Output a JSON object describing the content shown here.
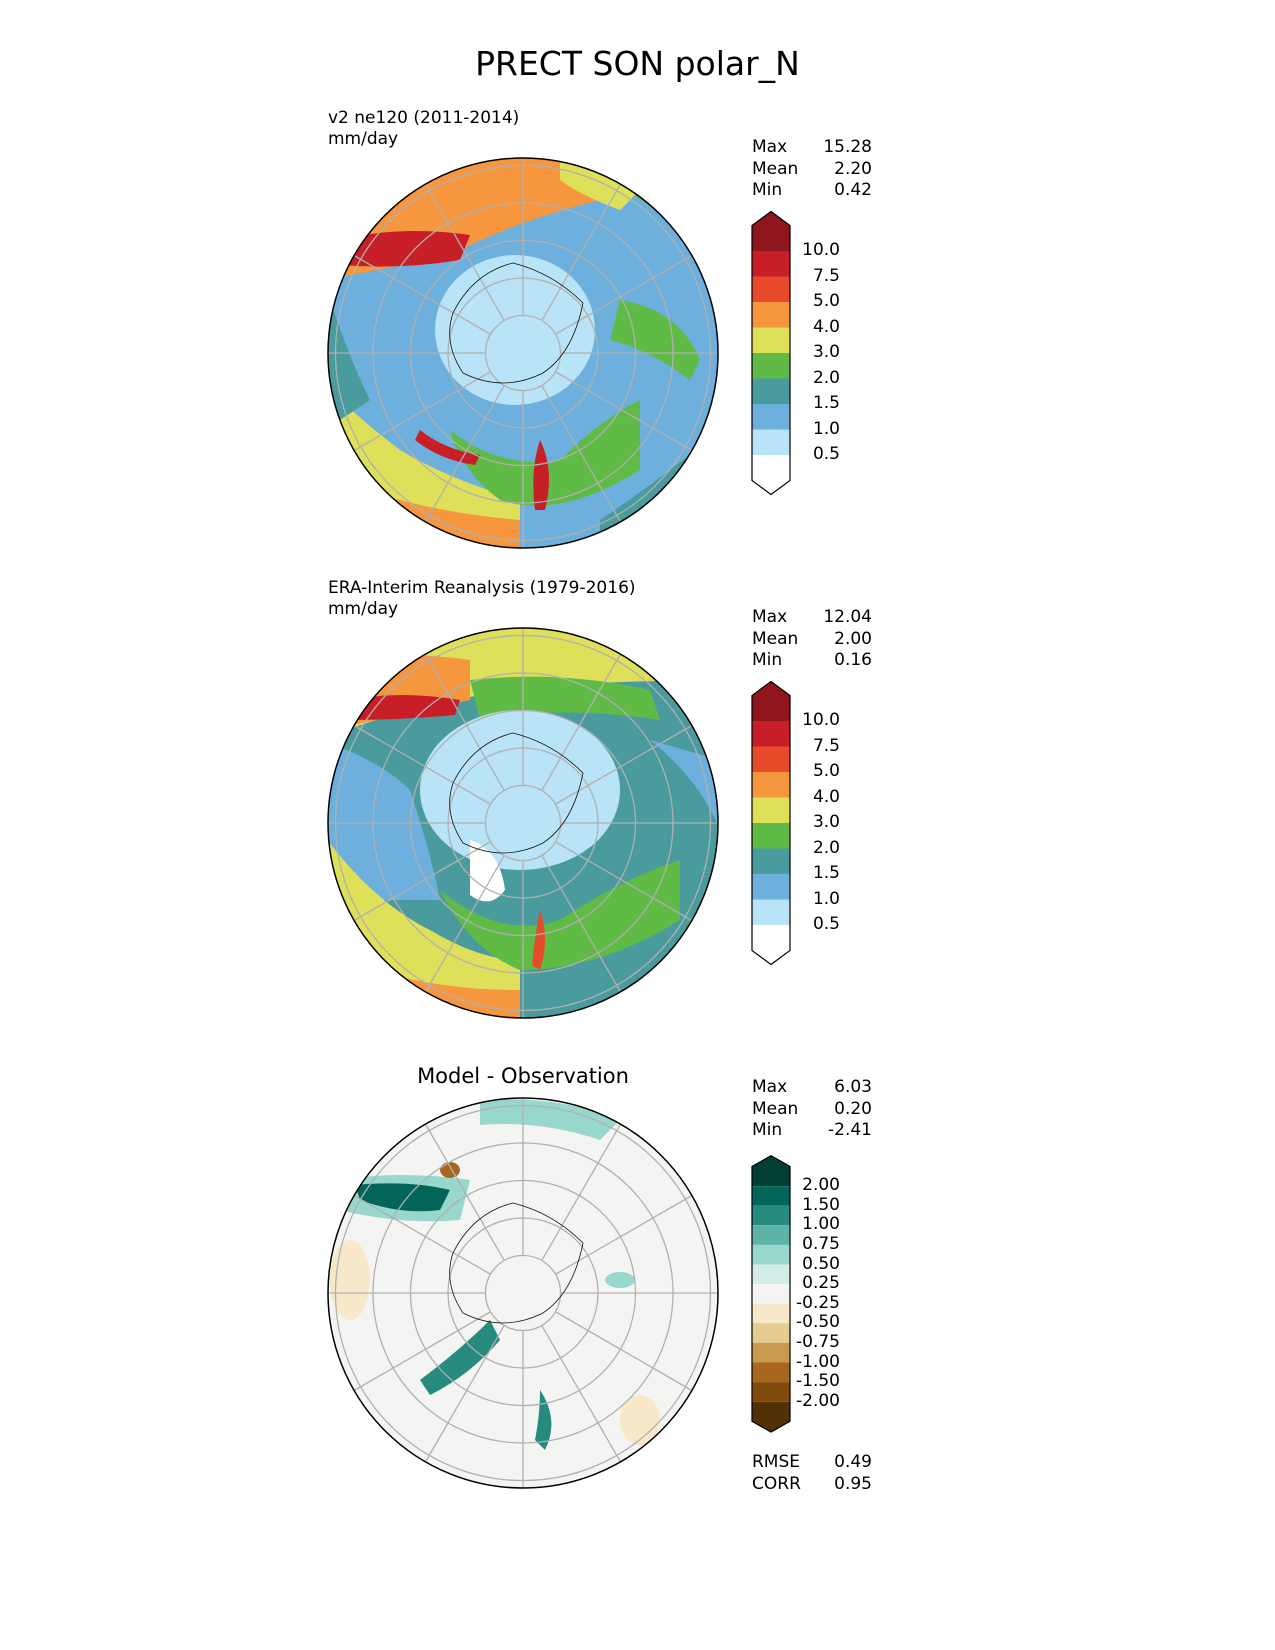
{
  "figure": {
    "title": "PRECT SON polar_N"
  },
  "panels": [
    {
      "title": "v2 ne120 (2011-2014)",
      "units": "mm/day",
      "stats": {
        "max_label": "Max",
        "max": "15.28",
        "mean_label": "Mean",
        "mean": "2.20",
        "min_label": "Min",
        "min": "0.42"
      }
    },
    {
      "title": "ERA-Interim Reanalysis (1979-2016)",
      "units": "mm/day",
      "stats": {
        "max_label": "Max",
        "max": "12.04",
        "mean_label": "Mean",
        "mean": "2.00",
        "min_label": "Min",
        "min": "0.16"
      }
    },
    {
      "title": "Model - Observation",
      "stats": {
        "max_label": "Max",
        "max": "6.03",
        "mean_label": "Mean",
        "mean": "0.20",
        "min_label": "Min",
        "min": "-2.41"
      },
      "metrics": {
        "rmse_label": "RMSE",
        "rmse": "0.49",
        "corr_label": "CORR",
        "corr": "0.95"
      }
    }
  ],
  "colorbar_precip": {
    "levels": [
      "10.0",
      "7.5",
      "5.0",
      "4.0",
      "3.0",
      "2.0",
      "1.5",
      "1.0",
      "0.5"
    ],
    "colors": [
      "#8f161d",
      "#c81e27",
      "#e84a2c",
      "#f6963e",
      "#dfe05a",
      "#5fbb46",
      "#4a9b9e",
      "#6db0de",
      "#b9e3f7",
      "#ffffff"
    ]
  },
  "colorbar_diff": {
    "levels": [
      "2.00",
      "1.50",
      "1.00",
      "0.75",
      "0.50",
      "0.25",
      "-0.25",
      "-0.50",
      "-0.75",
      "-1.00",
      "-1.50",
      "-2.00"
    ],
    "colors": [
      "#023f33",
      "#03645a",
      "#268a7f",
      "#5db3a8",
      "#98d7cc",
      "#d4ece8",
      "#f4f4f2",
      "#f6e8c8",
      "#e5cc90",
      "#c89a50",
      "#a8661f",
      "#804a0b",
      "#543005"
    ]
  }
}
